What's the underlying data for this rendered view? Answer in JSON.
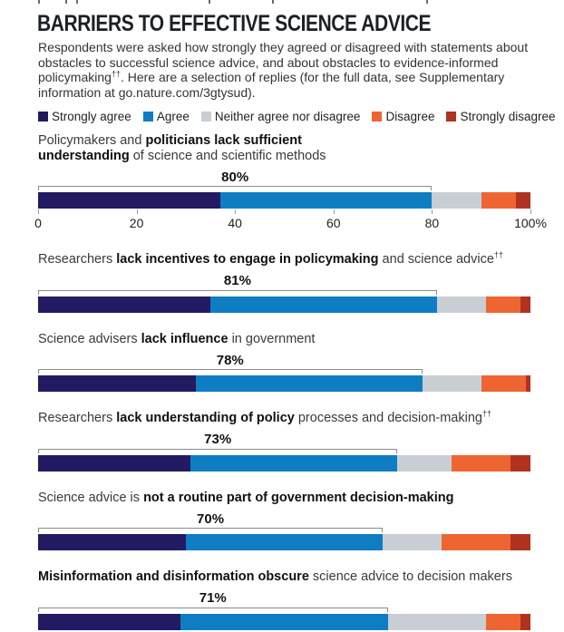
{
  "header": {
    "title": "BARRIERS TO EFFECTIVE SCIENCE ADVICE",
    "description_main": "Respondents were asked how strongly they agreed or disagreed with statements about obstacles to successful science advice, and about obstacles to evidence-informed policymaking",
    "description_sup": "††",
    "description_rest": ". Here are a selection of replies (for the full data, see Supplementary information at go.nature.com/3gtysud)."
  },
  "legend": [
    {
      "label": "Strongly agree",
      "color": "#221b61"
    },
    {
      "label": "Agree",
      "color": "#0e7dc2"
    },
    {
      "label": "Neither agree nor disagree",
      "color": "#c9ced5"
    },
    {
      "label": "Disagree",
      "color": "#ee6532"
    },
    {
      "label": "Strongly disagree",
      "color": "#b0331f"
    }
  ],
  "chart_data": {
    "type": "bar",
    "orientation": "horizontal-stacked",
    "unit": "%",
    "xlim": [
      0,
      100
    ],
    "axis_ticks": [
      {
        "value": 0,
        "label": "0"
      },
      {
        "value": 20,
        "label": "20"
      },
      {
        "value": 40,
        "label": "40"
      },
      {
        "value": 60,
        "label": "60"
      },
      {
        "value": 80,
        "label": "80"
      },
      {
        "value": 100,
        "label": "100%"
      }
    ],
    "axis_note": "axis shown under first bar only; bracket above each bar spans Strongly agree + Agree share",
    "series_names": [
      "Strongly agree",
      "Agree",
      "Neither agree nor disagree",
      "Disagree",
      "Strongly disagree"
    ],
    "statements": [
      {
        "label_pre": "Policymakers and ",
        "label_bold": "politicians lack sufficient understanding",
        "label_post": " of science and scientific methods",
        "label_sup": "",
        "agree_total_label": "80%",
        "agree_total_value": 80,
        "values": [
          37,
          43,
          10,
          7,
          3
        ]
      },
      {
        "label_pre": "Researchers ",
        "label_bold": "lack incentives to engage in policymaking",
        "label_post": " and science advice",
        "label_sup": "††",
        "agree_total_label": "81%",
        "agree_total_value": 81,
        "values": [
          35,
          46,
          10,
          7,
          2
        ]
      },
      {
        "label_pre": "Science advisers ",
        "label_bold": "lack influence",
        "label_post": " in government",
        "label_sup": "",
        "agree_total_label": "78%",
        "agree_total_value": 78,
        "values": [
          32,
          46,
          12,
          9,
          1
        ]
      },
      {
        "label_pre": "Researchers ",
        "label_bold": "lack understanding of policy",
        "label_post": " processes and decision-making",
        "label_sup": "††",
        "agree_total_label": "73%",
        "agree_total_value": 73,
        "values": [
          31,
          42,
          11,
          12,
          4
        ]
      },
      {
        "label_pre": "Science advice is ",
        "label_bold": "not a routine part of government decision-making",
        "label_post": "",
        "label_sup": "",
        "agree_total_label": "70%",
        "agree_total_value": 70,
        "values": [
          30,
          40,
          12,
          14,
          4
        ]
      },
      {
        "label_pre": "",
        "label_bold": "Misinformation and disinformation obscure",
        "label_post": " science advice to decision makers",
        "label_sup": "",
        "agree_total_label": "71%",
        "agree_total_value": 71,
        "values": [
          29,
          42,
          20,
          7,
          2
        ]
      }
    ]
  }
}
